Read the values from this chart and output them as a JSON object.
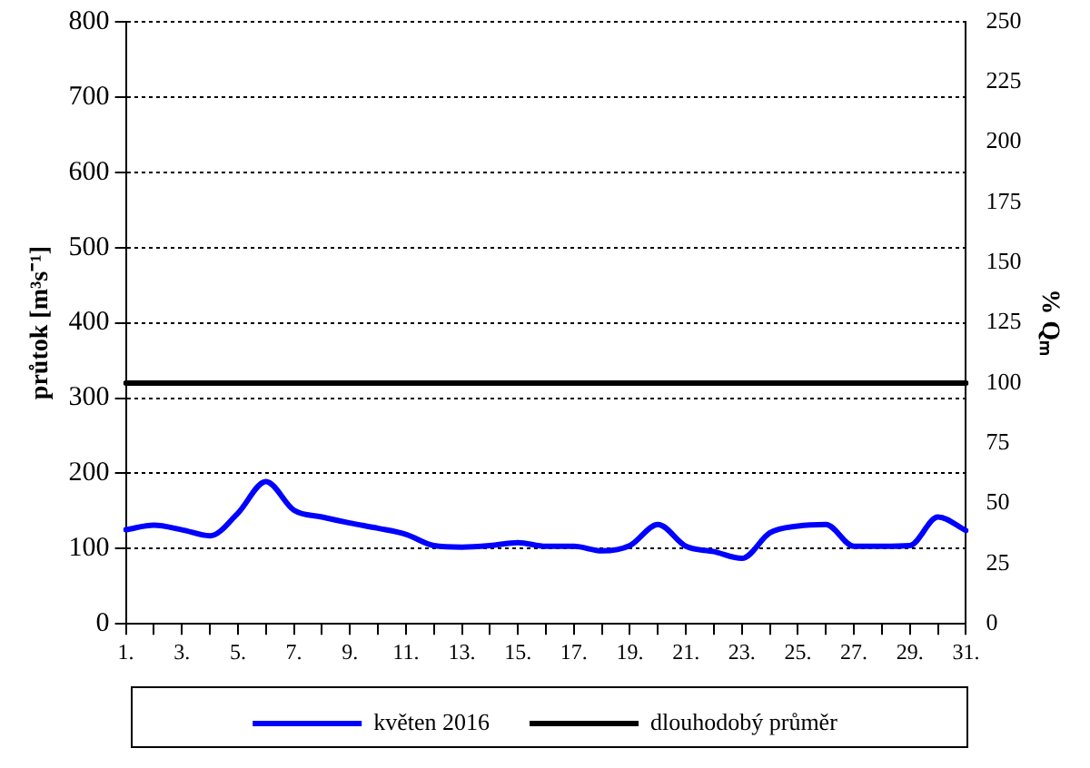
{
  "chart_data": {
    "type": "line",
    "categories": [
      "1.",
      null,
      "3.",
      null,
      "5.",
      null,
      "7.",
      null,
      "9.",
      null,
      "11.",
      null,
      "13.",
      null,
      "15.",
      null,
      "17.",
      null,
      "19.",
      null,
      "21.",
      null,
      "23.",
      null,
      "25.",
      null,
      "27.",
      null,
      "29.",
      null,
      "31."
    ],
    "series": [
      {
        "name": "květen 2016",
        "color": "#0000ff",
        "values": [
          125,
          131,
          125,
          117,
          147,
          189,
          151,
          142,
          134,
          127,
          119,
          104,
          102,
          104,
          108,
          103,
          103,
          97,
          104,
          132,
          103,
          96,
          87,
          121,
          130,
          132,
          103,
          103,
          104,
          142,
          124
        ]
      },
      {
        "name": "dlouhodobý průměr",
        "color": "#000000",
        "values": [
          320,
          320,
          320,
          320,
          320,
          320,
          320,
          320,
          320,
          320,
          320,
          320,
          320,
          320,
          320,
          320,
          320,
          320,
          320,
          320,
          320,
          320,
          320,
          320,
          320,
          320,
          320,
          320,
          320,
          320,
          320
        ]
      }
    ],
    "ylabel": "průtok [m³s⁻¹]",
    "y2label": "% Qₘ",
    "ylim": [
      0,
      800
    ],
    "yticks": [
      0,
      100,
      200,
      300,
      400,
      500,
      600,
      700,
      800
    ],
    "y2lim": [
      0,
      250
    ],
    "y2ticks": [
      0,
      25,
      50,
      75,
      100,
      125,
      150,
      175,
      200,
      225,
      250
    ],
    "grid": "y",
    "legend": "bottom",
    "marker": "none",
    "line_style": "solid"
  }
}
